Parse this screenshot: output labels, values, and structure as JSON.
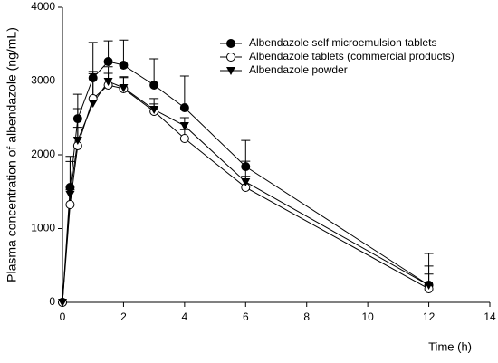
{
  "chart_data": {
    "type": "line",
    "xlabel": "Time (h)",
    "ylabel": "Plasma concentration of albendazole (ng/mL)",
    "x": [
      0,
      0.25,
      0.5,
      1,
      1.5,
      2,
      3,
      4,
      6,
      12
    ],
    "series": [
      {
        "name": "Albendazole self microemulsion tablets",
        "color": "#000000",
        "marker": "filled-circle",
        "values": [
          0,
          1558,
          2490,
          3043,
          3264,
          3215,
          2945,
          2638,
          1840,
          233
        ],
        "errors": [
          0,
          420,
          330,
          480,
          280,
          340,
          355,
          430,
          355,
          430
        ]
      },
      {
        "name": "Albendazole tablets (commercial products)",
        "color": "#000000",
        "marker": "open-circle",
        "values": [
          0,
          1325,
          2123,
          2760,
          2945,
          2896,
          2589,
          2221,
          1558,
          184
        ],
        "errors": [
          0,
          200,
          250,
          340,
          160,
          150,
          100,
          120,
          150,
          200
        ]
      },
      {
        "name": "Albendazole powder",
        "color": "#000000",
        "marker": "triangle",
        "values": [
          0,
          1460,
          2196,
          2700,
          2994,
          2908,
          2613,
          2393,
          1632,
          233
        ],
        "errors": [
          0,
          450,
          430,
          430,
          200,
          150,
          150,
          110,
          280,
          260
        ]
      }
    ],
    "xlim": [
      0,
      14
    ],
    "xticks": [
      0,
      2,
      4,
      6,
      8,
      10,
      12,
      14
    ],
    "ylim": [
      0,
      4000
    ],
    "yticks": [
      0,
      1000,
      2000,
      3000,
      4000
    ],
    "legend": "top-right"
  }
}
